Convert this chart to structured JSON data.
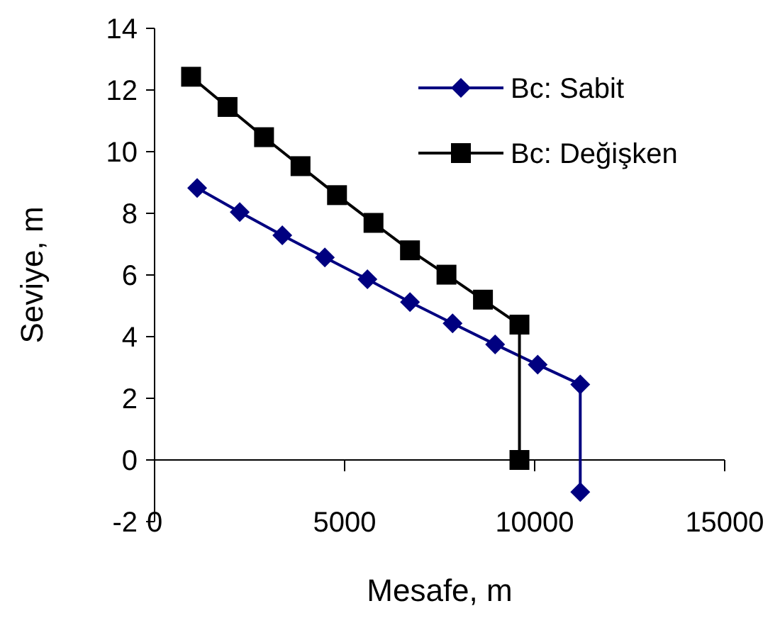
{
  "chart_data": {
    "type": "line",
    "xlabel": "Mesafe, m",
    "ylabel": "Seviye, m",
    "xlim": [
      0,
      15000
    ],
    "ylim": [
      -2,
      14
    ],
    "xticks": [
      0,
      5000,
      10000,
      15000
    ],
    "yticks": [
      -2,
      0,
      2,
      4,
      6,
      8,
      10,
      12,
      14
    ],
    "grid": false,
    "legend": "top right",
    "series": [
      {
        "name": "Bc: Sabit",
        "color": "#000080",
        "marker": "diamond",
        "x": [
          1120,
          2240,
          3360,
          4480,
          5600,
          6720,
          7840,
          8960,
          10080,
          11200,
          11200
        ],
        "values": [
          8.82,
          8.04,
          7.29,
          6.57,
          5.86,
          5.12,
          4.43,
          3.75,
          3.09,
          2.45,
          -1.04
        ]
      },
      {
        "name": "Bc: Değişken",
        "color": "#000000",
        "marker": "square",
        "x": [
          960,
          1920,
          2880,
          3840,
          4800,
          5760,
          6720,
          7680,
          8640,
          9600,
          9600
        ],
        "values": [
          12.43,
          11.45,
          10.47,
          9.53,
          8.59,
          7.69,
          6.8,
          6.01,
          5.2,
          4.39,
          0
        ]
      }
    ]
  }
}
